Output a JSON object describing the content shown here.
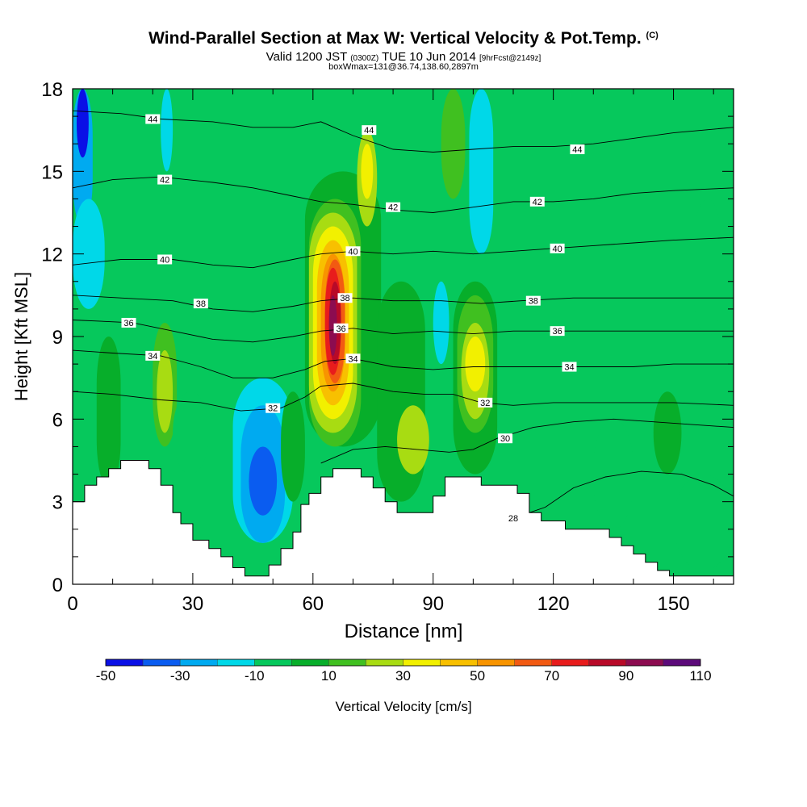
{
  "header": {
    "title": "Wind-Parallel Section at Max W: Vertical Velocity & Pot.Temp.",
    "copyright": "(C)",
    "valid_prefix": "Valid 1200 JST",
    "valid_utc": "(0300Z)",
    "valid_date": "TUE 10 Jun 2014",
    "forecast": "[9hrFcst@2149z]",
    "box_info": "boxWmax=131@36.74,138.60,2897m"
  },
  "chart_data": {
    "type": "heatmap",
    "xlabel": "Distance [nm]",
    "ylabel": "Height [Kft MSL]",
    "xlim": [
      0,
      165
    ],
    "ylim": [
      0,
      18
    ],
    "x_ticks": [
      0,
      30,
      60,
      90,
      120,
      150
    ],
    "y_ticks": [
      0,
      3,
      6,
      9,
      12,
      15,
      18
    ],
    "colorbar": {
      "label": "Vertical Velocity [cm/s]",
      "tick_labels": [
        -50,
        -30,
        -10,
        10,
        30,
        50,
        70,
        90,
        110
      ],
      "levels": [
        -50,
        -40,
        -30,
        -20,
        -10,
        0,
        10,
        20,
        30,
        40,
        50,
        60,
        70,
        80,
        90,
        100,
        110
      ],
      "colors": [
        "#0a10e6",
        "#0a5cf0",
        "#00aaf0",
        "#00d8e8",
        "#06c85c",
        "#07ae2a",
        "#40c020",
        "#a8dc12",
        "#f2f000",
        "#f8c000",
        "#f89400",
        "#f25a12",
        "#e81c1c",
        "#b80a28",
        "#8c0c50",
        "#5c0a7a"
      ]
    },
    "terrain": [
      [
        0,
        3.0
      ],
      [
        3,
        3.6
      ],
      [
        6,
        3.9
      ],
      [
        9,
        4.2
      ],
      [
        12,
        4.5
      ],
      [
        17,
        4.5
      ],
      [
        19,
        4.2
      ],
      [
        22,
        3.6
      ],
      [
        25,
        2.6
      ],
      [
        27,
        2.2
      ],
      [
        30,
        1.6
      ],
      [
        34,
        1.3
      ],
      [
        37,
        1.0
      ],
      [
        40,
        0.6
      ],
      [
        43,
        0.3
      ],
      [
        47,
        0.3
      ],
      [
        49,
        0.7
      ],
      [
        52,
        1.3
      ],
      [
        55,
        1.9
      ],
      [
        57,
        2.9
      ],
      [
        59,
        3.3
      ],
      [
        62,
        3.9
      ],
      [
        65,
        4.2
      ],
      [
        69,
        4.2
      ],
      [
        72,
        3.9
      ],
      [
        75,
        3.5
      ],
      [
        78,
        3.0
      ],
      [
        81,
        2.6
      ],
      [
        88,
        2.6
      ],
      [
        90,
        3.2
      ],
      [
        93,
        3.9
      ],
      [
        99,
        3.9
      ],
      [
        102,
        3.6
      ],
      [
        108,
        3.6
      ],
      [
        111,
        3.3
      ],
      [
        114,
        2.6
      ],
      [
        117,
        2.3
      ],
      [
        120,
        2.3
      ],
      [
        123,
        2.0
      ],
      [
        131,
        2.0
      ],
      [
        134,
        1.7
      ],
      [
        137,
        1.4
      ],
      [
        140,
        1.1
      ],
      [
        143,
        0.8
      ],
      [
        146,
        0.5
      ],
      [
        149,
        0.3
      ],
      [
        160,
        0.3
      ],
      [
        165,
        0.4
      ]
    ],
    "velocity_cells": [
      {
        "x0": 0,
        "x1": 5,
        "y0": 13,
        "y1": 18,
        "w": -30
      },
      {
        "x0": 1,
        "x1": 4,
        "y0": 15.5,
        "y1": 18,
        "w": -45
      },
      {
        "x0": 0,
        "x1": 8,
        "y0": 10,
        "y1": 14,
        "w": -15
      },
      {
        "x0": 6,
        "x1": 12,
        "y0": 3.5,
        "y1": 9,
        "w": 5
      },
      {
        "x0": 20,
        "x1": 26,
        "y0": 5,
        "y1": 9.5,
        "w": 15
      },
      {
        "x0": 21,
        "x1": 25,
        "y0": 5.5,
        "y1": 8.5,
        "w": 25
      },
      {
        "x0": 22,
        "x1": 25,
        "y0": 15,
        "y1": 18,
        "w": -12
      },
      {
        "x0": 25,
        "x1": 34,
        "y0": 4,
        "y1": 7,
        "w": -5
      },
      {
        "x0": 40,
        "x1": 55,
        "y0": 1.5,
        "y1": 7.5,
        "w": -15
      },
      {
        "x0": 42,
        "x1": 53,
        "y0": 1.5,
        "y1": 6.5,
        "w": -25
      },
      {
        "x0": 44,
        "x1": 51,
        "y0": 2.5,
        "y1": 5,
        "w": -40
      },
      {
        "x0": 52,
        "x1": 58,
        "y0": 3,
        "y1": 7,
        "w": 5
      },
      {
        "x0": 58,
        "x1": 77,
        "y0": 5,
        "y1": 15,
        "w": 5
      },
      {
        "x0": 59,
        "x1": 72,
        "y0": 5,
        "y1": 14,
        "w": 15
      },
      {
        "x0": 59,
        "x1": 71,
        "y0": 5.5,
        "y1": 13.5,
        "w": 25
      },
      {
        "x0": 60,
        "x1": 70,
        "y0": 6,
        "y1": 13,
        "w": 35
      },
      {
        "x0": 61,
        "x1": 69,
        "y0": 6.5,
        "y1": 12.5,
        "w": 45
      },
      {
        "x0": 62,
        "x1": 68,
        "y0": 7,
        "y1": 12,
        "w": 55
      },
      {
        "x0": 63,
        "x1": 68,
        "y0": 7.3,
        "y1": 11.8,
        "w": 65
      },
      {
        "x0": 63,
        "x1": 67,
        "y0": 7.6,
        "y1": 11.5,
        "w": 75
      },
      {
        "x0": 64,
        "x1": 67,
        "y0": 8,
        "y1": 11,
        "w": 85
      },
      {
        "x0": 64,
        "x1": 66,
        "y0": 8.3,
        "y1": 10.5,
        "w": 95
      },
      {
        "x0": 71,
        "x1": 76,
        "y0": 13,
        "y1": 16.5,
        "w": 25
      },
      {
        "x0": 72,
        "x1": 75,
        "y0": 14,
        "y1": 16,
        "w": 35
      },
      {
        "x0": 76,
        "x1": 88,
        "y0": 3,
        "y1": 11,
        "w": 5
      },
      {
        "x0": 81,
        "x1": 89,
        "y0": 4,
        "y1": 6.5,
        "w": 25
      },
      {
        "x0": 90,
        "x1": 94,
        "y0": 8,
        "y1": 11,
        "w": -15
      },
      {
        "x0": 95,
        "x1": 106,
        "y0": 4,
        "y1": 11,
        "w": 5
      },
      {
        "x0": 96,
        "x1": 105,
        "y0": 5.5,
        "y1": 10.5,
        "w": 15
      },
      {
        "x0": 97,
        "x1": 104,
        "y0": 6,
        "y1": 9.5,
        "w": 25
      },
      {
        "x0": 98,
        "x1": 103,
        "y0": 7,
        "y1": 9,
        "w": 35
      },
      {
        "x0": 99,
        "x1": 105,
        "y0": 12,
        "y1": 18,
        "w": -15
      },
      {
        "x0": 92,
        "x1": 98,
        "y0": 14,
        "y1": 18,
        "w": 15
      },
      {
        "x0": 123,
        "x1": 135,
        "y0": 3,
        "y1": 8,
        "w": -5
      },
      {
        "x0": 130,
        "x1": 140,
        "y0": 2,
        "y1": 6,
        "w": -5
      },
      {
        "x0": 145,
        "x1": 152,
        "y0": 4,
        "y1": 7,
        "w": 5
      },
      {
        "x0": 150,
        "x1": 165,
        "y0": 0.5,
        "y1": 4,
        "w": -5
      },
      {
        "x0": 155,
        "x1": 162,
        "y0": 9,
        "y1": 14,
        "w": -5
      }
    ],
    "isentropes": [
      {
        "value": 28,
        "points": [
          [
            110,
            2.4
          ],
          [
            118,
            2.8
          ],
          [
            125,
            3.5
          ],
          [
            133,
            3.9
          ],
          [
            142,
            4.1
          ],
          [
            152,
            4.0
          ],
          [
            160,
            3.6
          ],
          [
            165,
            3.2
          ]
        ]
      },
      {
        "value": 30,
        "points": [
          [
            62,
            4.4
          ],
          [
            70,
            4.9
          ],
          [
            78,
            5.0
          ],
          [
            86,
            4.9
          ],
          [
            94,
            4.8
          ],
          [
            100,
            4.9
          ],
          [
            106,
            5.3
          ],
          [
            115,
            5.7
          ],
          [
            125,
            5.9
          ],
          [
            135,
            6.0
          ],
          [
            145,
            5.9
          ],
          [
            155,
            5.8
          ],
          [
            165,
            5.7
          ]
        ]
      },
      {
        "value": 32,
        "points": [
          [
            0,
            7.0
          ],
          [
            10,
            6.9
          ],
          [
            22,
            6.7
          ],
          [
            32,
            6.6
          ],
          [
            42,
            6.3
          ],
          [
            52,
            6.4
          ],
          [
            58,
            6.8
          ],
          [
            62,
            7.2
          ],
          [
            70,
            7.3
          ],
          [
            80,
            7.0
          ],
          [
            88,
            6.9
          ],
          [
            95,
            6.9
          ],
          [
            102,
            6.6
          ],
          [
            110,
            6.5
          ],
          [
            120,
            6.6
          ],
          [
            130,
            6.6
          ],
          [
            140,
            6.6
          ],
          [
            150,
            6.6
          ],
          [
            165,
            6.5
          ]
        ]
      },
      {
        "value": 34,
        "points": [
          [
            0,
            8.5
          ],
          [
            10,
            8.4
          ],
          [
            22,
            8.3
          ],
          [
            32,
            7.9
          ],
          [
            40,
            7.5
          ],
          [
            50,
            7.5
          ],
          [
            58,
            7.8
          ],
          [
            63,
            8.1
          ],
          [
            70,
            8.2
          ],
          [
            80,
            7.9
          ],
          [
            90,
            7.8
          ],
          [
            100,
            7.9
          ],
          [
            110,
            7.9
          ],
          [
            120,
            7.9
          ],
          [
            130,
            7.9
          ],
          [
            140,
            7.9
          ],
          [
            150,
            8.0
          ],
          [
            165,
            8.0
          ]
        ]
      },
      {
        "value": 36,
        "points": [
          [
            0,
            9.6
          ],
          [
            15,
            9.5
          ],
          [
            25,
            9.2
          ],
          [
            35,
            8.9
          ],
          [
            45,
            8.8
          ],
          [
            55,
            9.0
          ],
          [
            62,
            9.2
          ],
          [
            70,
            9.3
          ],
          [
            80,
            9.1
          ],
          [
            90,
            9.2
          ],
          [
            100,
            9.1
          ],
          [
            110,
            9.2
          ],
          [
            120,
            9.2
          ],
          [
            130,
            9.2
          ],
          [
            140,
            9.2
          ],
          [
            150,
            9.2
          ],
          [
            165,
            9.2
          ]
        ]
      },
      {
        "value": 38,
        "points": [
          [
            0,
            10.5
          ],
          [
            12,
            10.4
          ],
          [
            25,
            10.3
          ],
          [
            35,
            10.0
          ],
          [
            45,
            9.9
          ],
          [
            55,
            10.1
          ],
          [
            62,
            10.3
          ],
          [
            70,
            10.4
          ],
          [
            80,
            10.3
          ],
          [
            92,
            10.3
          ],
          [
            102,
            10.2
          ],
          [
            112,
            10.3
          ],
          [
            125,
            10.4
          ],
          [
            140,
            10.4
          ],
          [
            150,
            10.4
          ],
          [
            165,
            10.4
          ]
        ]
      },
      {
        "value": 40,
        "points": [
          [
            0,
            11.6
          ],
          [
            12,
            11.8
          ],
          [
            25,
            11.8
          ],
          [
            35,
            11.6
          ],
          [
            45,
            11.5
          ],
          [
            55,
            11.8
          ],
          [
            62,
            12.0
          ],
          [
            70,
            12.1
          ],
          [
            80,
            12.0
          ],
          [
            90,
            12.1
          ],
          [
            100,
            12.0
          ],
          [
            110,
            12.1
          ],
          [
            120,
            12.2
          ],
          [
            130,
            12.3
          ],
          [
            140,
            12.4
          ],
          [
            150,
            12.5
          ],
          [
            165,
            12.6
          ]
        ]
      },
      {
        "value": 42,
        "points": [
          [
            0,
            14.4
          ],
          [
            10,
            14.7
          ],
          [
            22,
            14.8
          ],
          [
            35,
            14.6
          ],
          [
            45,
            14.4
          ],
          [
            55,
            14.1
          ],
          [
            62,
            13.9
          ],
          [
            70,
            13.8
          ],
          [
            80,
            13.6
          ],
          [
            90,
            13.5
          ],
          [
            100,
            13.7
          ],
          [
            110,
            13.9
          ],
          [
            120,
            13.9
          ],
          [
            130,
            14.0
          ],
          [
            140,
            14.2
          ],
          [
            150,
            14.3
          ],
          [
            165,
            14.4
          ]
        ]
      },
      {
        "value": 44,
        "points": [
          [
            0,
            17.2
          ],
          [
            12,
            17.1
          ],
          [
            22,
            16.9
          ],
          [
            35,
            16.8
          ],
          [
            45,
            16.6
          ],
          [
            55,
            16.6
          ],
          [
            62,
            16.8
          ],
          [
            70,
            16.3
          ],
          [
            80,
            15.8
          ],
          [
            90,
            15.7
          ],
          [
            100,
            15.8
          ],
          [
            110,
            15.9
          ],
          [
            120,
            15.9
          ],
          [
            130,
            16.0
          ],
          [
            140,
            16.2
          ],
          [
            150,
            16.4
          ],
          [
            165,
            16.6
          ]
        ]
      }
    ],
    "isentrope_labels": [
      {
        "text": "44",
        "x": 20,
        "y": 16.9
      },
      {
        "text": "44",
        "x": 74,
        "y": 16.5
      },
      {
        "text": "44",
        "x": 126,
        "y": 15.8
      },
      {
        "text": "42",
        "x": 23,
        "y": 14.7
      },
      {
        "text": "42",
        "x": 80,
        "y": 13.7
      },
      {
        "text": "42",
        "x": 116,
        "y": 13.9
      },
      {
        "text": "40",
        "x": 23,
        "y": 11.8
      },
      {
        "text": "40",
        "x": 70,
        "y": 12.1
      },
      {
        "text": "40",
        "x": 121,
        "y": 12.2
      },
      {
        "text": "38",
        "x": 32,
        "y": 10.2
      },
      {
        "text": "38",
        "x": 68,
        "y": 10.4
      },
      {
        "text": "38",
        "x": 115,
        "y": 10.3
      },
      {
        "text": "36",
        "x": 14,
        "y": 9.5
      },
      {
        "text": "36",
        "x": 67,
        "y": 9.3
      },
      {
        "text": "36",
        "x": 121,
        "y": 9.2
      },
      {
        "text": "34",
        "x": 20,
        "y": 8.3
      },
      {
        "text": "34",
        "x": 70,
        "y": 8.2
      },
      {
        "text": "34",
        "x": 124,
        "y": 7.9
      },
      {
        "text": "32",
        "x": 50,
        "y": 6.4
      },
      {
        "text": "32",
        "x": 103,
        "y": 6.6
      },
      {
        "text": "30",
        "x": 108,
        "y": 5.3
      },
      {
        "text": "28",
        "x": 110,
        "y": 2.4
      }
    ]
  }
}
